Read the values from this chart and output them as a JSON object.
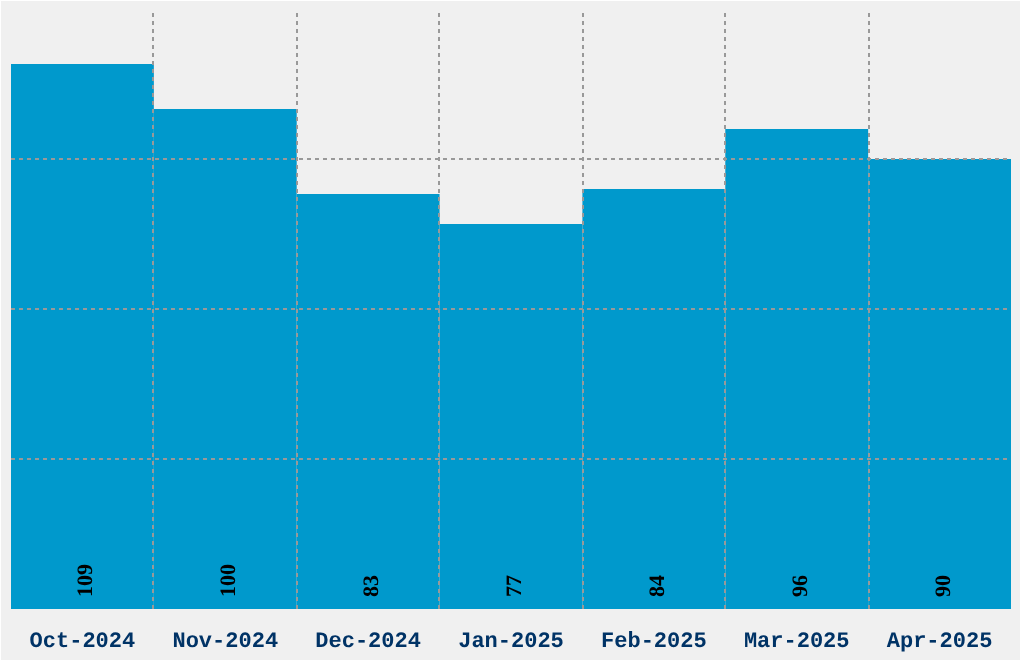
{
  "chart_data": {
    "type": "bar",
    "categories": [
      "Oct-2024",
      "Nov-2024",
      "Dec-2024",
      "Jan-2025",
      "Feb-2025",
      "Mar-2025",
      "Apr-2025"
    ],
    "values": [
      109,
      100,
      83,
      77,
      84,
      96,
      90
    ],
    "color": "#0099cc",
    "ylim": [
      0,
      120
    ],
    "yticks": [
      {
        "value": 30,
        "label": null
      },
      {
        "value": 60,
        "label": null
      },
      {
        "value": 90,
        "label": null
      },
      {
        "value": 120,
        "label": null
      }
    ],
    "tick_labels": "x",
    "grid": true,
    "data_labels": true
  }
}
